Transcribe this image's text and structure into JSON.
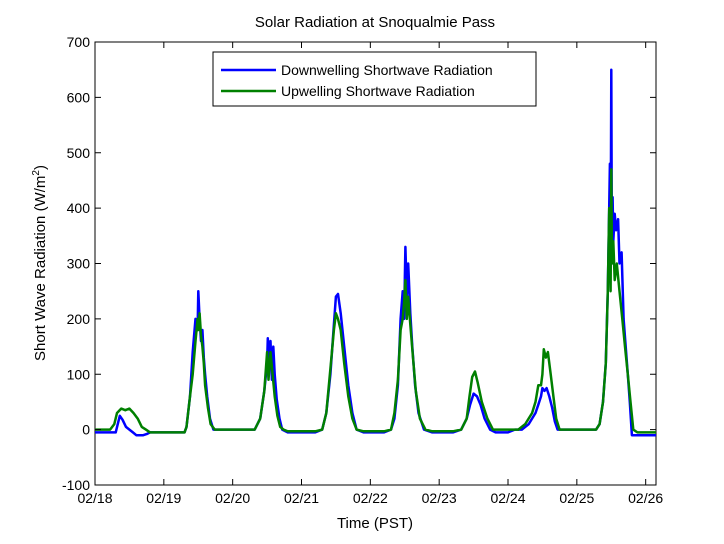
{
  "chart_data": {
    "type": "line",
    "title": "Solar Radiation at Snoqualmie Pass",
    "xlabel": "Time (PST)",
    "ylabel_main": "Short Wave Radiation (W/m",
    "ylabel_sup": "2",
    "ylabel_close": ")",
    "xlim": [
      0,
      8.15
    ],
    "ylim": [
      -100,
      700
    ],
    "x_ticks": [
      0,
      1,
      2,
      3,
      4,
      5,
      6,
      7,
      8
    ],
    "x_tick_labels": [
      "02/18",
      "02/19",
      "02/20",
      "02/21",
      "02/22",
      "02/23",
      "02/24",
      "02/25",
      "02/26"
    ],
    "y_ticks": [
      -100,
      0,
      100,
      200,
      300,
      400,
      500,
      600,
      700
    ],
    "y_tick_labels": [
      "-100",
      "0",
      "100",
      "200",
      "300",
      "400",
      "500",
      "600",
      "700"
    ],
    "x_unit": "days since 02/18 00:00",
    "legend_position": "top-center",
    "series": [
      {
        "name": "Downwelling Shortwave Radiation",
        "color": "#0000ff",
        "x": [
          0.0,
          0.3,
          0.36,
          0.4,
          0.45,
          0.5,
          0.55,
          0.6,
          0.65,
          0.7,
          0.75,
          0.8,
          0.9,
          1.0,
          1.1,
          1.2,
          1.3,
          1.33,
          1.38,
          1.42,
          1.46,
          1.49,
          1.5,
          1.52,
          1.54,
          1.56,
          1.58,
          1.6,
          1.63,
          1.67,
          1.72,
          1.8,
          1.9,
          2.0,
          2.1,
          2.2,
          2.32,
          2.4,
          2.46,
          2.5,
          2.51,
          2.53,
          2.55,
          2.57,
          2.59,
          2.61,
          2.64,
          2.68,
          2.72,
          2.8,
          2.9,
          3.0,
          3.1,
          3.2,
          3.3,
          3.36,
          3.42,
          3.47,
          3.5,
          3.53,
          3.57,
          3.62,
          3.68,
          3.74,
          3.8,
          3.9,
          4.0,
          4.1,
          4.2,
          4.3,
          4.35,
          4.4,
          4.44,
          4.47,
          4.49,
          4.51,
          4.53,
          4.55,
          4.58,
          4.61,
          4.65,
          4.7,
          4.78,
          4.9,
          5.0,
          5.1,
          5.2,
          5.32,
          5.4,
          5.45,
          5.5,
          5.55,
          5.6,
          5.66,
          5.74,
          5.82,
          5.9,
          6.0,
          6.1,
          6.2,
          6.3,
          6.4,
          6.44,
          6.48,
          6.5,
          6.53,
          6.56,
          6.6,
          6.64,
          6.68,
          6.72,
          6.8,
          6.9,
          7.0,
          7.1,
          7.2,
          7.28,
          7.33,
          7.38,
          7.42,
          7.45,
          7.47,
          7.48,
          7.49,
          7.5,
          7.51,
          7.52,
          7.53,
          7.55,
          7.57,
          7.6,
          7.62,
          7.65,
          7.68,
          7.71,
          7.74,
          7.77,
          7.8,
          7.85,
          8.0,
          8.15
        ],
        "y": [
          -5,
          -5,
          25,
          18,
          5,
          0,
          -5,
          -10,
          -10,
          -10,
          -8,
          -5,
          -5,
          -5,
          -5,
          -5,
          -5,
          5,
          60,
          140,
          200,
          180,
          250,
          200,
          160,
          180,
          130,
          100,
          60,
          20,
          0,
          0,
          0,
          0,
          0,
          0,
          0,
          20,
          70,
          120,
          165,
          120,
          160,
          90,
          150,
          100,
          55,
          20,
          0,
          -5,
          -5,
          -5,
          -5,
          -5,
          0,
          30,
          100,
          190,
          240,
          245,
          210,
          150,
          80,
          30,
          0,
          -5,
          -5,
          -5,
          -5,
          0,
          20,
          80,
          200,
          250,
          200,
          330,
          240,
          300,
          210,
          150,
          80,
          30,
          0,
          -5,
          -5,
          -5,
          -5,
          0,
          20,
          45,
          65,
          60,
          45,
          20,
          0,
          -5,
          -5,
          -5,
          0,
          0,
          10,
          30,
          45,
          60,
          75,
          70,
          75,
          60,
          40,
          15,
          0,
          0,
          0,
          0,
          0,
          0,
          0,
          10,
          50,
          120,
          250,
          400,
          480,
          300,
          650,
          300,
          420,
          340,
          390,
          360,
          380,
          300,
          320,
          200,
          150,
          100,
          50,
          -10,
          -10,
          -10,
          -10
        ]
      },
      {
        "name": "Upwelling Shortwave Radiation",
        "color": "#008000",
        "x": [
          0.0,
          0.22,
          0.28,
          0.32,
          0.38,
          0.44,
          0.5,
          0.56,
          0.62,
          0.68,
          0.74,
          0.8,
          0.9,
          1.0,
          1.1,
          1.2,
          1.3,
          1.33,
          1.38,
          1.42,
          1.46,
          1.49,
          1.5,
          1.52,
          1.54,
          1.56,
          1.58,
          1.6,
          1.64,
          1.68,
          1.74,
          1.8,
          1.9,
          2.0,
          2.1,
          2.2,
          2.32,
          2.4,
          2.46,
          2.5,
          2.52,
          2.55,
          2.58,
          2.61,
          2.65,
          2.69,
          2.74,
          2.8,
          2.9,
          3.0,
          3.1,
          3.2,
          3.3,
          3.36,
          3.42,
          3.47,
          3.5,
          3.53,
          3.57,
          3.62,
          3.68,
          3.74,
          3.8,
          3.9,
          4.0,
          4.1,
          4.2,
          4.3,
          4.35,
          4.4,
          4.44,
          4.47,
          4.49,
          4.51,
          4.53,
          4.55,
          4.58,
          4.62,
          4.66,
          4.72,
          4.8,
          4.9,
          5.0,
          5.1,
          5.2,
          5.32,
          5.4,
          5.44,
          5.48,
          5.52,
          5.56,
          5.62,
          5.7,
          5.78,
          5.86,
          5.95,
          6.05,
          6.15,
          6.25,
          6.35,
          6.4,
          6.44,
          6.48,
          6.5,
          6.52,
          6.55,
          6.58,
          6.62,
          6.66,
          6.7,
          6.75,
          6.82,
          6.9,
          7.0,
          7.1,
          7.2,
          7.28,
          7.33,
          7.38,
          7.42,
          7.45,
          7.47,
          7.49,
          7.5,
          7.51,
          7.53,
          7.55,
          7.58,
          7.62,
          7.66,
          7.7,
          7.74,
          7.78,
          7.82,
          7.88,
          8.0,
          8.15
        ],
        "y": [
          0,
          0,
          10,
          30,
          38,
          35,
          38,
          30,
          20,
          5,
          0,
          -5,
          -5,
          -5,
          -5,
          -5,
          -5,
          5,
          60,
          100,
          160,
          200,
          180,
          210,
          170,
          150,
          120,
          80,
          40,
          10,
          0,
          0,
          0,
          0,
          0,
          0,
          0,
          20,
          70,
          140,
          90,
          140,
          100,
          60,
          25,
          5,
          0,
          -3,
          -3,
          -3,
          -3,
          -3,
          0,
          30,
          110,
          180,
          210,
          200,
          180,
          120,
          60,
          20,
          0,
          -3,
          -3,
          -3,
          -3,
          0,
          30,
          90,
          180,
          200,
          230,
          270,
          200,
          240,
          190,
          130,
          70,
          20,
          0,
          -3,
          -3,
          -3,
          -3,
          0,
          20,
          60,
          95,
          105,
          85,
          50,
          20,
          0,
          0,
          0,
          0,
          0,
          10,
          30,
          50,
          80,
          80,
          100,
          145,
          130,
          140,
          100,
          60,
          20,
          0,
          0,
          0,
          0,
          0,
          0,
          0,
          10,
          50,
          120,
          250,
          400,
          250,
          470,
          300,
          340,
          270,
          300,
          250,
          200,
          150,
          100,
          50,
          0,
          -5,
          -5,
          -5
        ]
      }
    ]
  }
}
